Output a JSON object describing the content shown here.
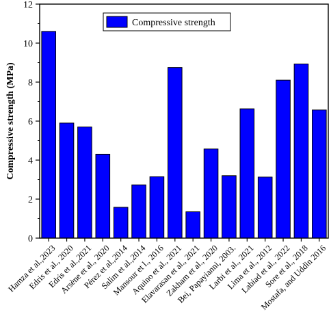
{
  "chart_data": {
    "type": "bar",
    "title": "",
    "xlabel": "",
    "ylabel": "Compressive strength (MPa)",
    "ylim": [
      0,
      12
    ],
    "yticks": [
      0,
      2,
      4,
      6,
      8,
      10,
      12
    ],
    "grid": false,
    "legend_position": "top-center",
    "bar_color": "#0000ff",
    "series": [
      {
        "name": "Compressive strength",
        "values": [
          10.6,
          5.9,
          5.7,
          4.3,
          1.58,
          2.73,
          3.15,
          8.75,
          1.35,
          4.57,
          3.2,
          6.63,
          3.13,
          8.1,
          8.93,
          6.57
        ]
      }
    ],
    "categories": [
      "Hamza et al.,2023",
      "Edris et al., 2020",
      "Edris et al.,2021",
      "Arsène et al., 2020",
      "Pérez et al.,2014",
      "Salim et al.,2014",
      "Mansour et l., 2016",
      "Aquino et al., 2021",
      "Elavarasan et al., 2021",
      "Zakham et al., 2020",
      "Bei,  Papayianni, 2003.",
      "Larbi et al., 2021",
      "Lima et al., 2012",
      "Labiad et al., 2022",
      "Sore et al., 2018",
      "Mostafa, and Uddin 2016"
    ]
  }
}
